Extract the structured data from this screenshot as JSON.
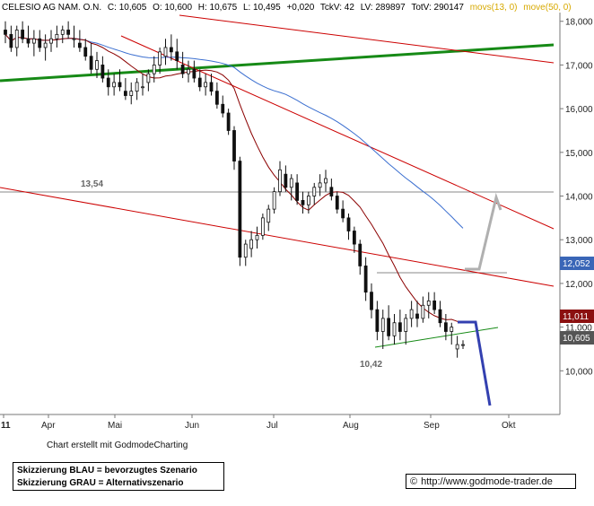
{
  "header": {
    "symbol": "CELESIO AG NAM. O.N.",
    "close": "C: 10,605",
    "open": "O: 10,600",
    "high": "H: 10,675",
    "low": "L: 10,495",
    "change": "+0,020",
    "tckv": "TckV: 42",
    "lv": "LV: 289897",
    "totv": "TotV: 290147",
    "mov_short": "movs(13, 0)",
    "mov_long": "move(50, 0)"
  },
  "colors": {
    "candle": "#111111",
    "ma_short": "#8b0000",
    "ma_long": "#3b6fd0",
    "trend_red": "#cc0000",
    "trend_green": "#168a16",
    "scenario_blue": "#3340b0",
    "scenario_gray": "#b0b0b0",
    "level_gray": "#888888",
    "badge_blue": "#3a66b7",
    "badge_red": "#8b1010",
    "badge_gray": "#555555"
  },
  "chart_data": {
    "type": "candlestick",
    "x_labels": [
      "11",
      "Apr",
      "Mai",
      "Jun",
      "Jul",
      "Aug",
      "Sep",
      "Okt"
    ],
    "y_ticks": [
      "18,000",
      "17,000",
      "16,000",
      "15,000",
      "14,000",
      "13,000",
      "12,000",
      "11,000",
      "10,000"
    ],
    "ylim": [
      9.0,
      18.2
    ],
    "annotations": {
      "level_high": "13,54",
      "level_low": "10,42"
    },
    "badges": {
      "ma_long_value": "12,052",
      "ma_short_value": "11,011",
      "last_price": "10,605"
    },
    "candles": [
      [
        17.8,
        18.0,
        17.5,
        17.7
      ],
      [
        17.7,
        17.9,
        17.3,
        17.4
      ],
      [
        17.4,
        17.9,
        17.2,
        17.8
      ],
      [
        17.8,
        18.0,
        17.5,
        17.6
      ],
      [
        17.6,
        17.9,
        17.4,
        17.5
      ],
      [
        17.5,
        17.8,
        17.2,
        17.6
      ],
      [
        17.6,
        17.8,
        17.3,
        17.4
      ],
      [
        17.4,
        17.7,
        17.1,
        17.5
      ],
      [
        17.5,
        17.8,
        17.3,
        17.6
      ],
      [
        17.6,
        17.9,
        17.4,
        17.7
      ],
      [
        17.7,
        17.9,
        17.5,
        17.8
      ],
      [
        17.8,
        18.0,
        17.6,
        17.7
      ],
      [
        17.6,
        17.9,
        17.4,
        17.6
      ],
      [
        17.5,
        17.8,
        17.3,
        17.4
      ],
      [
        17.4,
        17.6,
        17.1,
        17.2
      ],
      [
        17.2,
        17.5,
        16.8,
        16.9
      ],
      [
        16.9,
        17.3,
        16.7,
        17.1
      ],
      [
        17.0,
        17.2,
        16.6,
        16.7
      ],
      [
        16.7,
        16.9,
        16.3,
        16.5
      ],
      [
        16.5,
        16.8,
        16.3,
        16.6
      ],
      [
        16.6,
        16.9,
        16.4,
        16.5
      ],
      [
        16.4,
        16.7,
        16.2,
        16.3
      ],
      [
        16.3,
        16.6,
        16.1,
        16.4
      ],
      [
        16.4,
        16.7,
        16.2,
        16.6
      ],
      [
        16.5,
        16.8,
        16.3,
        16.5
      ],
      [
        16.6,
        16.9,
        16.4,
        16.8
      ],
      [
        16.8,
        17.2,
        16.6,
        17.0
      ],
      [
        17.0,
        17.4,
        16.8,
        17.3
      ],
      [
        17.2,
        17.6,
        17.0,
        17.4
      ],
      [
        17.4,
        17.7,
        17.1,
        17.3
      ],
      [
        17.3,
        17.6,
        16.9,
        17.1
      ],
      [
        17.0,
        17.3,
        16.7,
        16.8
      ],
      [
        16.8,
        17.1,
        16.6,
        16.9
      ],
      [
        16.9,
        17.1,
        16.6,
        16.7
      ],
      [
        16.7,
        16.9,
        16.4,
        16.5
      ],
      [
        16.5,
        16.8,
        16.3,
        16.6
      ],
      [
        16.6,
        16.8,
        16.3,
        16.4
      ],
      [
        16.4,
        16.6,
        16.0,
        16.1
      ],
      [
        16.1,
        16.3,
        15.8,
        15.9
      ],
      [
        15.9,
        16.0,
        15.4,
        15.5
      ],
      [
        15.5,
        15.6,
        14.6,
        14.8
      ],
      [
        14.8,
        14.9,
        12.4,
        12.6
      ],
      [
        12.6,
        13.0,
        12.4,
        12.9
      ],
      [
        12.8,
        13.2,
        12.6,
        13.0
      ],
      [
        13.0,
        13.3,
        12.8,
        13.1
      ],
      [
        13.1,
        13.6,
        13.0,
        13.5
      ],
      [
        13.4,
        13.8,
        13.2,
        13.7
      ],
      [
        13.7,
        14.2,
        13.6,
        14.1
      ],
      [
        14.1,
        14.8,
        14.0,
        14.6
      ],
      [
        14.5,
        14.7,
        14.1,
        14.2
      ],
      [
        14.2,
        14.5,
        13.9,
        14.4
      ],
      [
        14.3,
        14.5,
        13.8,
        13.9
      ],
      [
        13.9,
        14.1,
        13.6,
        13.8
      ],
      [
        13.8,
        14.1,
        13.6,
        14.0
      ],
      [
        14.0,
        14.3,
        13.8,
        14.2
      ],
      [
        14.2,
        14.5,
        14.0,
        14.3
      ],
      [
        14.3,
        14.6,
        14.1,
        14.4
      ],
      [
        14.2,
        14.4,
        13.9,
        14.0
      ],
      [
        14.0,
        14.1,
        13.6,
        13.7
      ],
      [
        13.7,
        13.9,
        13.4,
        13.5
      ],
      [
        13.5,
        13.6,
        13.0,
        13.2
      ],
      [
        13.2,
        13.3,
        12.7,
        12.9
      ],
      [
        12.9,
        13.0,
        12.2,
        12.4
      ],
      [
        12.4,
        12.6,
        11.6,
        11.8
      ],
      [
        11.8,
        12.0,
        11.2,
        11.4
      ],
      [
        11.4,
        11.6,
        10.7,
        10.9
      ],
      [
        10.9,
        11.4,
        10.5,
        11.2
      ],
      [
        11.2,
        11.5,
        10.7,
        10.8
      ],
      [
        10.8,
        11.3,
        10.6,
        11.1
      ],
      [
        11.1,
        11.4,
        10.7,
        10.9
      ],
      [
        10.9,
        11.3,
        10.6,
        11.2
      ],
      [
        11.2,
        11.6,
        11.0,
        11.4
      ],
      [
        11.3,
        11.6,
        11.0,
        11.2
      ],
      [
        11.2,
        11.7,
        11.1,
        11.5
      ],
      [
        11.5,
        11.8,
        11.2,
        11.6
      ],
      [
        11.6,
        11.8,
        11.3,
        11.4
      ],
      [
        11.4,
        11.6,
        11.0,
        11.1
      ],
      [
        11.1,
        11.3,
        10.7,
        10.9
      ],
      [
        10.9,
        11.1,
        10.6,
        11.0
      ],
      [
        10.5,
        10.8,
        10.3,
        10.6
      ],
      [
        10.6,
        10.7,
        10.5,
        10.6
      ]
    ]
  },
  "footer": {
    "credit": "Chart erstellt mit GodmodeCharting",
    "legend_blue": "Skizzierung BLAU = bevorzugtes Szenario",
    "legend_gray": "Skizzierung GRAU = Alternativszenario",
    "url": "http://www.godmode-trader.de"
  }
}
